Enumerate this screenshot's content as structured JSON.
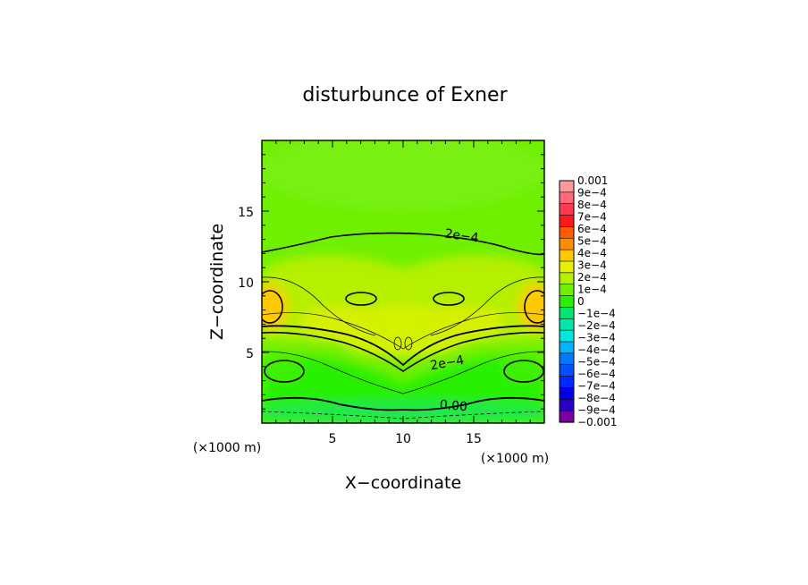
{
  "chart_data": {
    "type": "heatmap",
    "title": "disturbunce of Exner",
    "xlabel": "X−coordinate",
    "ylabel": "Z−coordinate",
    "x_unit": "(×1000 m)",
    "y_unit": "(×1000 m)",
    "xlim": [
      0,
      20
    ],
    "ylim": [
      0,
      20
    ],
    "x_ticks": [
      5,
      10,
      15
    ],
    "y_ticks": [
      5,
      10,
      15
    ],
    "contour_labels": [
      "2e−4",
      "2e−4",
      "0.00"
    ],
    "colorbar": {
      "labels": [
        "0.001",
        "9e−4",
        "8e−4",
        "7e−4",
        "6e−4",
        "5e−4",
        "4e−4",
        "3e−4",
        "2e−4",
        "1e−4",
        "0",
        "−1e−4",
        "−2e−4",
        "−3e−4",
        "−4e−4",
        "−5e−4",
        "−6e−4",
        "−7e−4",
        "−8e−4",
        "−9e−4",
        "−0.001"
      ],
      "colors": [
        "#ff9999",
        "#ff6a7a",
        "#ff3a50",
        "#ff1a1a",
        "#ff5a00",
        "#ff8c00",
        "#ffc800",
        "#e6f000",
        "#b4f000",
        "#6ef000",
        "#28f000",
        "#00e66e",
        "#00e6a8",
        "#00e6dc",
        "#00b4ff",
        "#0078ff",
        "#0050ff",
        "#0028ff",
        "#0000e6",
        "#2800c8",
        "#7800a0"
      ]
    }
  }
}
